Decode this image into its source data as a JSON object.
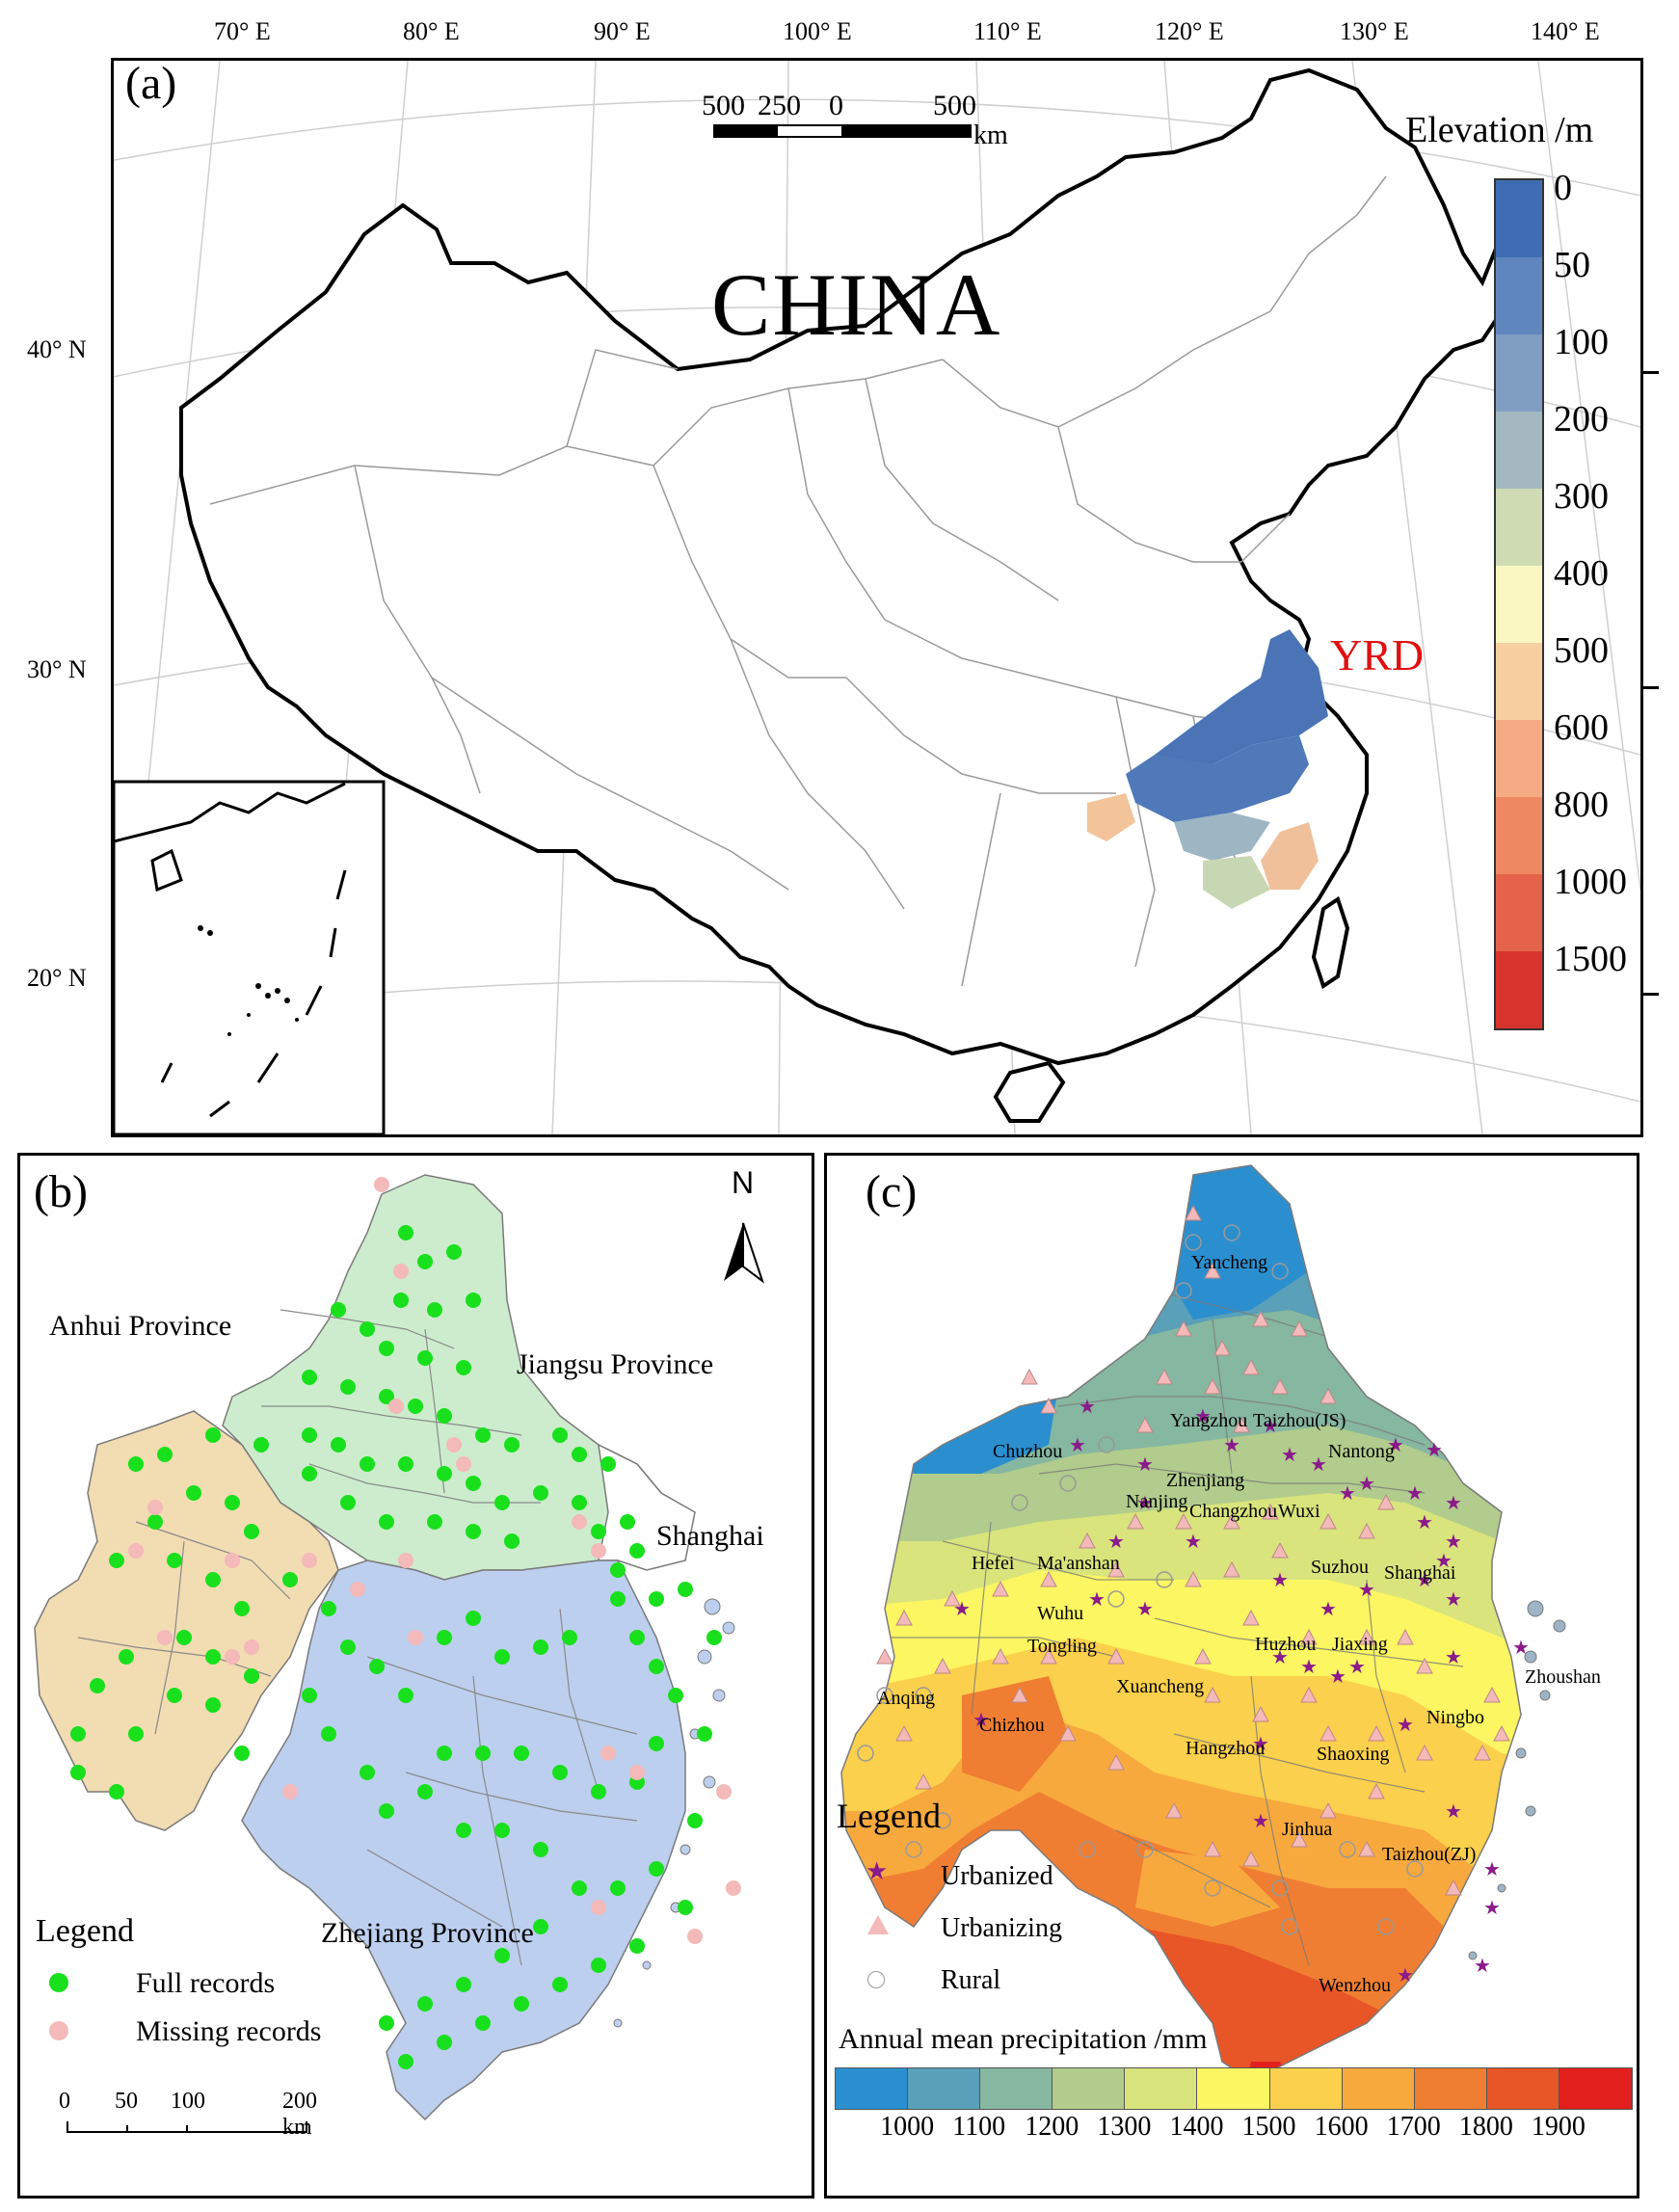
{
  "panel_a": {
    "label": "(a)",
    "country_label": "CHINA",
    "region_label": "YRD",
    "lon_labels": [
      "70° E",
      "80° E",
      "90° E",
      "100° E",
      "110° E",
      "120° E",
      "130° E",
      "140° E"
    ],
    "lat_labels": [
      "40° N",
      "30° N",
      "20° N"
    ],
    "scale_bar": {
      "ticks": [
        "500",
        "250",
        "0",
        "500"
      ],
      "unit": "km"
    },
    "legend_title": "Elevation /m",
    "legend_items": [
      {
        "label": "0",
        "color": "#3f6db3"
      },
      {
        "label": "50",
        "color": "#5f86bd"
      },
      {
        "label": "100",
        "color": "#7f9ec2"
      },
      {
        "label": "200",
        "color": "#a3b8c0"
      },
      {
        "label": "300",
        "color": "#cfdcb3"
      },
      {
        "label": "400",
        "color": "#fbf7c2"
      },
      {
        "label": "500",
        "color": "#f7cfa0"
      },
      {
        "label": "600",
        "color": "#f4ab84"
      },
      {
        "label": "800",
        "color": "#ee8862"
      },
      {
        "label": "1000",
        "color": "#e5634a"
      },
      {
        "label": "1500",
        "color": "#d6342c"
      }
    ]
  },
  "panel_b": {
    "label": "(b)",
    "north_label": "N",
    "province_labels": [
      "Anhui Province",
      "Jiangsu Province",
      "Shanghai",
      "Zhejiang Province"
    ],
    "legend_title": "Legend",
    "legend_items": [
      {
        "label": "Full records",
        "color": "#18e01c"
      },
      {
        "label": "Missing records",
        "color": "#f4b9b9"
      }
    ],
    "scale_bar": {
      "ticks": [
        "0",
        "50",
        "100",
        "200 km"
      ]
    },
    "region_colors": {
      "anhui": "#f2dcb2",
      "jiangsu": "#cdeccd",
      "zhejiang": "#bccfee",
      "shanghai": "#ffffff"
    }
  },
  "panel_c": {
    "label": "(c)",
    "city_labels": [
      "Yancheng",
      "Yangzhou",
      "Taizhou(JS)",
      "Chuzhou",
      "Nantong",
      "Zhenjiang",
      "Nanjing",
      "Changzhou",
      "Wuxi",
      "Hefei",
      "Ma'anshan",
      "Suzhou",
      "Shanghai",
      "Wuhu",
      "Tongling",
      "Huzhou",
      "Jiaxing",
      "Anqing",
      "Xuancheng",
      "Chizhou",
      "Zhoushan",
      "Hangzhou",
      "Shaoxing",
      "Ningbo",
      "Jinhua",
      "Taizhou(ZJ)",
      "Wenzhou"
    ],
    "legend_title": "Legend",
    "legend_items": [
      {
        "label": "Urbanized",
        "symbol": "star",
        "color": "#8b1a8b"
      },
      {
        "label": "Urbanizing",
        "symbol": "triangle",
        "color": "#f4b9b9"
      },
      {
        "label": "Rural",
        "symbol": "circle",
        "color": "#ffffff"
      }
    ],
    "precip_title": "Annual mean precipitation /mm",
    "precip_ticks": [
      "1000",
      "1100",
      "1200",
      "1300",
      "1400",
      "1500",
      "1600",
      "1700",
      "1800",
      "1900"
    ],
    "precip_colors": [
      "#2b8fcf",
      "#5aa0b8",
      "#86b7a0",
      "#b1cc8c",
      "#d9e47c",
      "#fbf661",
      "#fbd04c",
      "#f7a93e",
      "#f07e32",
      "#e85526",
      "#e21f1c"
    ]
  }
}
